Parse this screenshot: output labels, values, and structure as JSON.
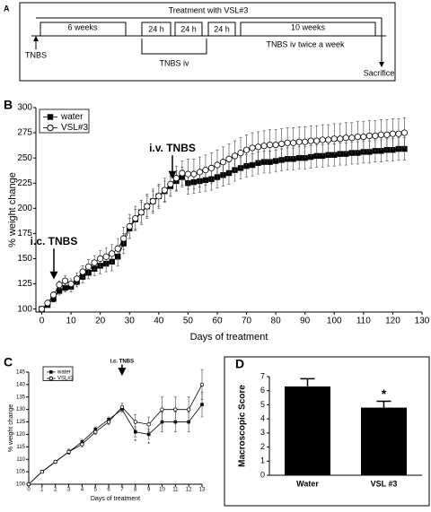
{
  "timeline": {
    "panel_label": "A",
    "top": "Treatment with VSL#3",
    "weeks6": "6 weeks",
    "h24": [
      "24 h",
      "24 h",
      "24 h"
    ],
    "weeks10": "10 weeks",
    "start": "TNBS",
    "iv": "TNBS iv",
    "iv_twice": "TNBS iv twice a week",
    "end": "Sacrifice"
  },
  "chart_data": [
    {
      "type": "line",
      "panel_label": "B",
      "x_label": "Days of treatment",
      "y_label": "% weight change",
      "x": [
        0,
        2,
        4,
        6,
        8,
        10,
        12,
        14,
        16,
        18,
        20,
        22,
        24,
        26,
        28,
        30,
        32,
        34,
        36,
        38,
        40,
        42,
        44,
        46,
        48,
        50,
        52,
        54,
        56,
        58,
        60,
        62,
        64,
        66,
        68,
        70,
        72,
        74,
        76,
        78,
        80,
        82,
        84,
        86,
        88,
        90,
        92,
        94,
        96,
        98,
        100,
        102,
        104,
        106,
        108,
        110,
        112,
        114,
        116,
        118,
        120,
        122,
        124
      ],
      "series": [
        {
          "name": "water",
          "color": "#000000",
          "marker": "square",
          "values": [
            100,
            104,
            110,
            118,
            121,
            122,
            127,
            132,
            136,
            140,
            143,
            145,
            147,
            152,
            165,
            180,
            189,
            196,
            202,
            207,
            212,
            217,
            222,
            227,
            231,
            225,
            226,
            227,
            228,
            229,
            231,
            233,
            235,
            238,
            240,
            242,
            243,
            245,
            246,
            246,
            247,
            248,
            249,
            249,
            250,
            250,
            251,
            252,
            252,
            253,
            253,
            254,
            254,
            255,
            255,
            256,
            256,
            257,
            257,
            258,
            258,
            259,
            259
          ],
          "errors": [
            1,
            2,
            3,
            4,
            4,
            5,
            5,
            6,
            6,
            7,
            8,
            8,
            9,
            9,
            10,
            10,
            10,
            10,
            10,
            10,
            10,
            10,
            10,
            10,
            10,
            11,
            11,
            11,
            11,
            11,
            11,
            11,
            11,
            11,
            11,
            11,
            11,
            11,
            11,
            11,
            11,
            11,
            11,
            11,
            11,
            11,
            11,
            11,
            11,
            11,
            11,
            11,
            11,
            11,
            11,
            11,
            11,
            11,
            11,
            11,
            11,
            11,
            11
          ]
        },
        {
          "name": "VSL#3",
          "color": "#000000",
          "marker": "circle",
          "values": [
            100,
            106,
            114,
            124,
            128,
            125,
            130,
            137,
            142,
            146,
            150,
            152,
            155,
            160,
            170,
            182,
            190,
            196,
            202,
            207,
            212,
            218,
            224,
            230,
            235,
            234,
            234,
            236,
            238,
            240,
            243,
            246,
            249,
            252,
            255,
            258,
            260,
            261,
            262,
            263,
            263,
            264,
            265,
            265,
            266,
            266,
            267,
            267,
            268,
            268,
            269,
            269,
            270,
            270,
            271,
            271,
            272,
            272,
            273,
            273,
            274,
            274,
            275
          ],
          "errors": [
            1,
            2,
            3,
            4,
            5,
            5,
            6,
            6,
            7,
            7,
            8,
            9,
            9,
            10,
            11,
            12,
            12,
            12,
            12,
            12,
            12,
            12,
            12,
            12,
            12,
            15,
            15,
            15,
            15,
            15,
            15,
            15,
            15,
            15,
            15,
            15,
            15,
            15,
            15,
            15,
            15,
            15,
            15,
            15,
            15,
            15,
            15,
            15,
            15,
            15,
            15,
            15,
            15,
            15,
            15,
            15,
            15,
            15,
            15,
            15,
            15,
            15,
            15
          ]
        }
      ],
      "xlim": [
        -2,
        130
      ],
      "xticks": [
        0,
        10,
        20,
        30,
        40,
        50,
        60,
        70,
        80,
        90,
        100,
        110,
        120,
        130
      ],
      "ylim": [
        97,
        300
      ],
      "yticks": [
        100,
        125,
        150,
        175,
        200,
        225,
        250,
        275,
        300
      ],
      "annotations": [
        "i.c. TNBS",
        "i.v. TNBS"
      ]
    },
    {
      "type": "line",
      "panel_label": "C",
      "x_label": "Days of treatment",
      "y_label": "% weight change",
      "x": [
        0,
        1,
        2,
        3,
        4,
        5,
        6,
        7,
        8,
        9,
        10,
        11,
        12,
        13
      ],
      "series": [
        {
          "name": "water",
          "color": "#000000",
          "marker": "square",
          "values": [
            100,
            105,
            109,
            113,
            117,
            122,
            126,
            130,
            121,
            120,
            125,
            125,
            125,
            132
          ],
          "errors": [
            0,
            0.5,
            0.5,
            1,
            1,
            1,
            1,
            1,
            2,
            2,
            4,
            4,
            4,
            5
          ]
        },
        {
          "name": "VSL#3",
          "color": "#000000",
          "marker": "circle",
          "values": [
            100,
            105,
            109,
            113,
            116,
            121,
            125,
            131,
            125,
            124,
            130,
            130,
            130,
            140
          ],
          "errors": [
            0,
            0.5,
            0.5,
            1,
            1,
            1,
            1,
            1.5,
            3,
            3,
            5,
            5,
            5,
            6
          ]
        }
      ],
      "xlim": [
        0,
        13
      ],
      "xticks": [
        0,
        1,
        2,
        3,
        4,
        5,
        6,
        7,
        8,
        9,
        10,
        11,
        12,
        13
      ],
      "ylim": [
        100,
        145
      ],
      "yticks": [
        100,
        105,
        110,
        115,
        120,
        125,
        130,
        135,
        140,
        145
      ],
      "annotations": [
        "i.c. TNBS",
        "*",
        "*"
      ]
    },
    {
      "type": "bar",
      "panel_label": "D",
      "y_label": "Macroscopic Score",
      "categories": [
        "Water",
        "VSL #3"
      ],
      "values": [
        6.3,
        4.8
      ],
      "errors": [
        0.55,
        0.45
      ],
      "color": "#000000",
      "ylim": [
        0,
        7
      ],
      "yticks": [
        0,
        1,
        2,
        3,
        4,
        5,
        6,
        7
      ],
      "annotations": [
        "*"
      ]
    }
  ]
}
